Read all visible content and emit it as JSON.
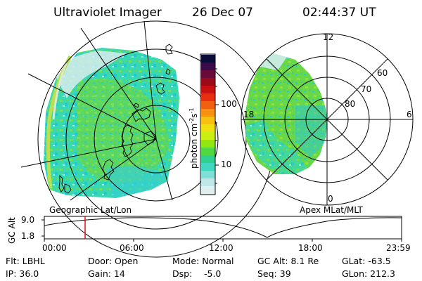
{
  "header": {
    "title": "Ultraviolet Imager",
    "date": "26 Dec 07",
    "time": "02:44:37 UT"
  },
  "left_map": {
    "label": "Geographic Lat/Lon"
  },
  "right_map": {
    "label": "Apex MLat/MLT",
    "mlt_labels": [
      "12",
      "18",
      "6",
      "0"
    ],
    "mlat_labels": [
      "60",
      "70",
      "80"
    ]
  },
  "colorbar": {
    "unit_label": "photon cm",
    "unit_sup1": "-2",
    "unit_s": "s",
    "unit_sup2": "-1",
    "ticks": [
      "100",
      "10"
    ],
    "colors": [
      "#0b0b3a",
      "#3a0a4a",
      "#6a0a3a",
      "#9a0a1a",
      "#c81010",
      "#e83010",
      "#f06010",
      "#f89010",
      "#f8c010",
      "#f0e010",
      "#c8f010",
      "#90e810",
      "#50d840",
      "#30d090",
      "#40d8c0",
      "#80e0d8",
      "#c0e8e8",
      "#e0f0f0"
    ]
  },
  "altitude_plot": {
    "ylabel": "GC Alt",
    "ytick_top": "9.0",
    "ytick_bottom": "1.8",
    "x_ticks": [
      "00:00",
      "06:00",
      "12:00",
      "18:00",
      "23:59"
    ],
    "marker_time_hours": 2.74
  },
  "footer": {
    "flt": "Flt: LBHL",
    "ip": "IP: 36.0",
    "door": "Door: Open",
    "gain": "Gain: 14",
    "mode": "Mode: Normal",
    "dsp_label": "Dsp:",
    "dsp_value": "-5.0",
    "gcalt": "GC Alt: 8.1 Re",
    "seq": "Seq: 39",
    "glat": "GLat: -63.5",
    "glon": "GLon: 212.3"
  }
}
